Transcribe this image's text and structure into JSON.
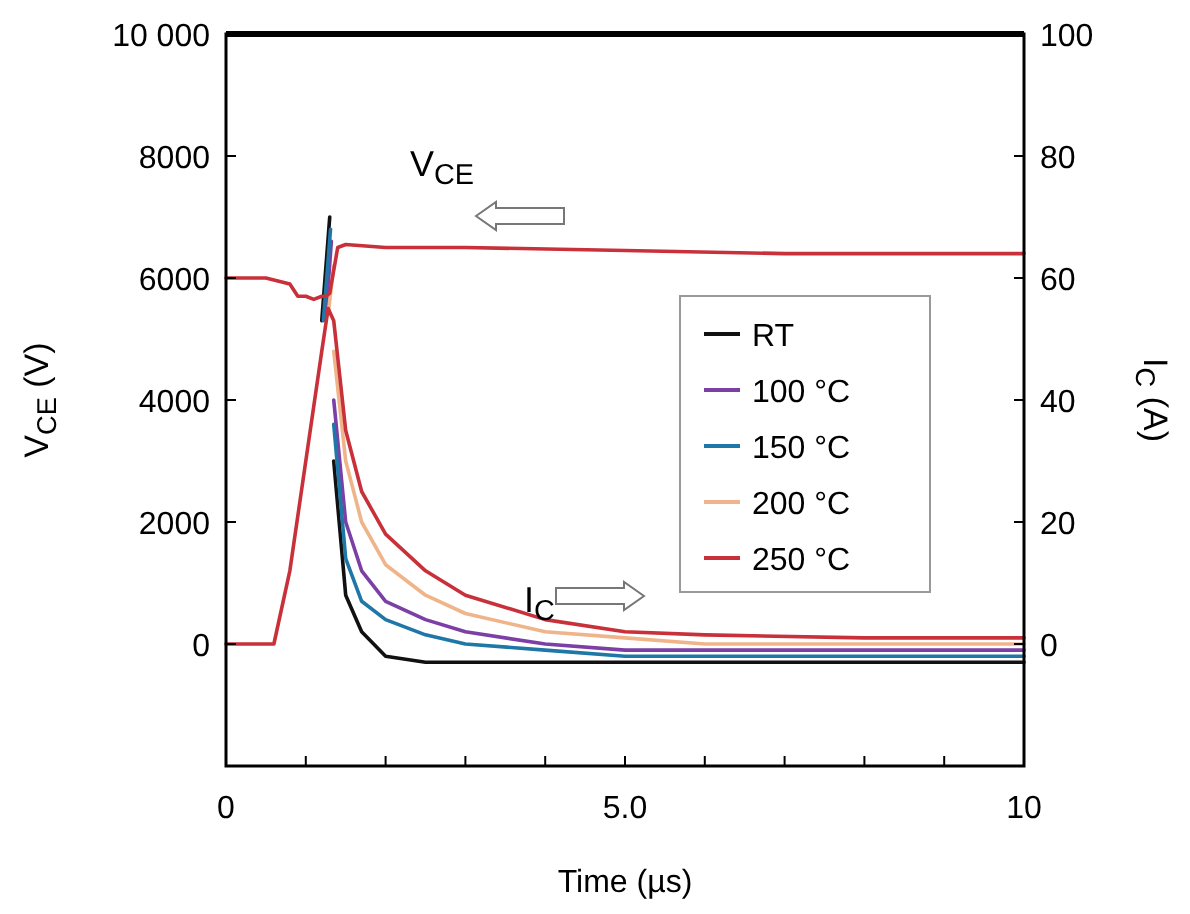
{
  "chart_data": {
    "type": "line",
    "xlabel": "Time (µs)",
    "ylabel": "V$_{CE}$ (V)",
    "y2label": "I$_{C}$ (A)",
    "xlim": [
      0,
      10
    ],
    "xticks": [
      0,
      {
        "value": 1,
        "label": null
      },
      {
        "value": 2,
        "label": null
      },
      {
        "value": 3,
        "label": null
      },
      {
        "value": 4,
        "label": null
      },
      {
        "value": 5,
        "label": "5.0"
      },
      {
        "value": 6,
        "label": null
      },
      {
        "value": 7,
        "label": null
      },
      {
        "value": 8,
        "label": null
      },
      {
        "value": 9,
        "label": null
      },
      10
    ],
    "ylim": [
      -2000,
      10000
    ],
    "yticks": [
      0,
      2000,
      4000,
      6000,
      8000,
      {
        "value": 10000,
        "label": "10 000"
      }
    ],
    "y2lim": [
      -20,
      100
    ],
    "y2ticks": [
      0,
      20,
      40,
      60,
      80,
      100
    ],
    "grid": false,
    "legend": "right",
    "marker": "none",
    "line_style": "solid",
    "annotations": [
      "V$_{CE}$",
      "I$_{C}$"
    ],
    "series": [
      {
        "name": "RT",
        "color": "#111111",
        "axis": "y",
        "x": [
          1.2,
          1.3
        ],
        "values": [
          5300,
          7000
        ]
      },
      {
        "name": "100 °C",
        "color": "#7b3fa6",
        "axis": "y",
        "x": [
          1.25,
          1.32
        ],
        "values": [
          5300,
          6600
        ]
      },
      {
        "name": "150 °C",
        "color": "#1f77a8",
        "axis": "y",
        "x": [
          1.22,
          1.31
        ],
        "values": [
          5300,
          6800
        ]
      },
      {
        "name": "200 °C",
        "color": "#f0b48a",
        "axis": "y",
        "x": [
          1.28,
          1.35
        ],
        "values": [
          5400,
          6200
        ]
      },
      {
        "name": "250 °C",
        "color": "#c8303a",
        "axis": "y",
        "x": [
          0,
          0.5,
          0.8,
          0.9,
          1.0,
          1.1,
          1.2,
          1.25,
          1.3,
          1.4,
          1.5,
          2,
          3,
          5,
          7,
          10
        ],
        "values": [
          6000,
          6000,
          5900,
          5700,
          5700,
          5650,
          5700,
          5700,
          5750,
          6500,
          6550,
          6500,
          6500,
          6450,
          6400,
          6400
        ]
      },
      {
        "color": "#111111",
        "axis": "y2",
        "x": [
          1.35,
          1.5,
          1.7,
          2,
          2.5,
          3,
          5,
          10
        ],
        "values": [
          30,
          8,
          2,
          -2,
          -3,
          -3,
          -3,
          -3
        ]
      },
      {
        "color": "#7b3fa6",
        "axis": "y2",
        "x": [
          1.35,
          1.5,
          1.7,
          2,
          2.5,
          3,
          4,
          5,
          7,
          10
        ],
        "values": [
          40,
          20,
          12,
          7,
          4,
          2,
          0,
          -1,
          -1,
          -1
        ]
      },
      {
        "color": "#1f77a8",
        "axis": "y2",
        "x": [
          1.35,
          1.5,
          1.7,
          2,
          2.5,
          3,
          4,
          5,
          7,
          10
        ],
        "values": [
          36,
          14,
          7,
          4,
          1.5,
          0,
          -1,
          -2,
          -2,
          -2
        ]
      },
      {
        "color": "#f0b48a",
        "axis": "y2",
        "x": [
          1.35,
          1.5,
          1.7,
          2,
          2.5,
          3,
          4,
          5,
          6,
          8,
          10
        ],
        "values": [
          48,
          30,
          20,
          13,
          8,
          5,
          2,
          1,
          0,
          0,
          0
        ]
      },
      {
        "color": "#c8303a",
        "axis": "y2",
        "x": [
          0,
          0.6,
          0.8,
          1.0,
          1.2,
          1.28,
          1.35,
          1.5,
          1.7,
          2,
          2.5,
          3,
          4,
          5,
          6,
          8,
          10
        ],
        "values": [
          0,
          0,
          12,
          30,
          48,
          55,
          53,
          35,
          25,
          18,
          12,
          8,
          4,
          2,
          1.5,
          1,
          1
        ]
      }
    ]
  }
}
